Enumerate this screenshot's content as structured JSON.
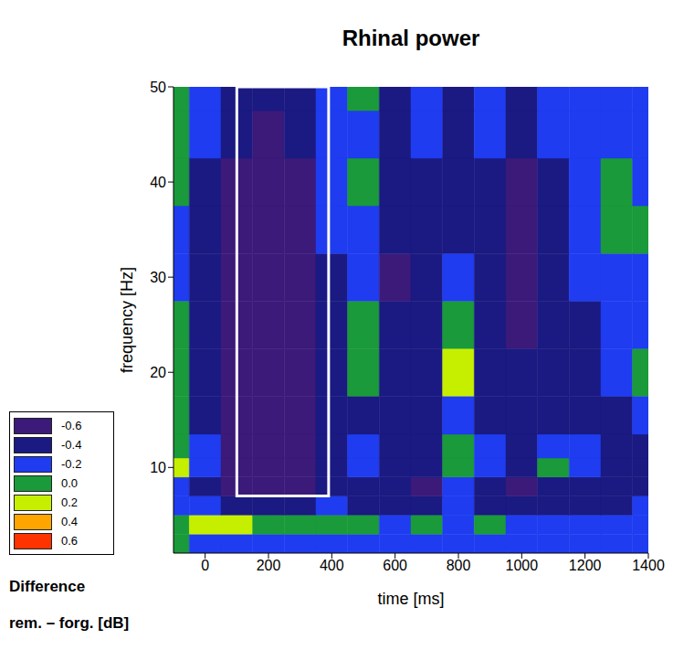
{
  "chart_data": {
    "type": "heatmap",
    "title": "Rhinal power",
    "x_label": "time [ms]",
    "y_label": "frequency [Hz]",
    "x": [
      -100,
      0,
      100,
      200,
      300,
      400,
      500,
      600,
      700,
      800,
      900,
      1000,
      1100,
      1200,
      1300,
      1400
    ],
    "y": [
      2,
      4,
      6,
      8,
      10,
      12,
      15,
      20,
      25,
      30,
      35,
      40,
      45,
      50
    ],
    "z": [
      [
        0.0,
        -0.2,
        -0.2,
        -0.2,
        -0.2,
        -0.2,
        -0.2,
        -0.2,
        -0.2,
        -0.2,
        -0.2,
        -0.2,
        -0.2,
        -0.2,
        -0.2,
        -0.2
      ],
      [
        0.0,
        0.2,
        0.2,
        0.0,
        0.0,
        0.0,
        0.0,
        -0.2,
        0.0,
        -0.2,
        0.0,
        -0.2,
        -0.2,
        -0.2,
        -0.2,
        -0.2
      ],
      [
        -0.2,
        -0.2,
        -0.4,
        -0.4,
        -0.4,
        -0.2,
        -0.4,
        -0.4,
        -0.4,
        -0.2,
        -0.4,
        -0.4,
        -0.4,
        -0.4,
        -0.4,
        -0.2
      ],
      [
        -0.2,
        -0.4,
        -0.6,
        -0.6,
        -0.6,
        -0.4,
        -0.4,
        -0.4,
        -0.6,
        -0.2,
        -0.4,
        -0.6,
        -0.4,
        -0.4,
        -0.4,
        -0.4
      ],
      [
        0.2,
        -0.2,
        -0.6,
        -0.6,
        -0.6,
        -0.4,
        -0.2,
        -0.4,
        -0.4,
        0.0,
        -0.2,
        -0.4,
        0.0,
        -0.2,
        -0.4,
        -0.4
      ],
      [
        0.0,
        -0.2,
        -0.6,
        -0.6,
        -0.6,
        -0.4,
        -0.2,
        -0.4,
        -0.4,
        0.0,
        -0.2,
        -0.4,
        -0.2,
        -0.2,
        -0.4,
        -0.4
      ],
      [
        0.0,
        -0.4,
        -0.6,
        -0.6,
        -0.6,
        -0.4,
        -0.4,
        -0.4,
        -0.4,
        -0.2,
        -0.4,
        -0.4,
        -0.4,
        -0.4,
        -0.4,
        -0.2
      ],
      [
        0.0,
        -0.4,
        -0.6,
        -0.6,
        -0.6,
        -0.4,
        0.0,
        -0.4,
        -0.4,
        0.2,
        -0.4,
        -0.4,
        -0.4,
        -0.4,
        -0.2,
        0.0
      ],
      [
        0.0,
        -0.4,
        -0.6,
        -0.6,
        -0.6,
        -0.4,
        0.0,
        -0.4,
        -0.4,
        0.0,
        -0.4,
        -0.6,
        -0.4,
        -0.4,
        -0.2,
        -0.2
      ],
      [
        -0.2,
        -0.4,
        -0.6,
        -0.6,
        -0.6,
        -0.4,
        -0.2,
        -0.6,
        -0.4,
        -0.2,
        -0.4,
        -0.6,
        -0.4,
        -0.2,
        -0.2,
        -0.2
      ],
      [
        -0.2,
        -0.4,
        -0.6,
        -0.6,
        -0.6,
        -0.2,
        -0.2,
        -0.4,
        -0.4,
        -0.4,
        -0.4,
        -0.6,
        -0.4,
        -0.2,
        0.0,
        0.0
      ],
      [
        0.0,
        -0.4,
        -0.6,
        -0.6,
        -0.6,
        -0.2,
        0.0,
        -0.4,
        -0.4,
        -0.4,
        -0.4,
        -0.6,
        -0.4,
        -0.2,
        0.0,
        -0.2
      ],
      [
        0.0,
        -0.2,
        -0.4,
        -0.6,
        -0.4,
        -0.2,
        -0.2,
        -0.4,
        -0.2,
        -0.4,
        -0.2,
        -0.4,
        -0.2,
        -0.2,
        -0.2,
        -0.2
      ],
      [
        0.0,
        -0.2,
        -0.4,
        -0.4,
        -0.4,
        -0.2,
        0.0,
        -0.4,
        -0.2,
        -0.4,
        -0.2,
        -0.4,
        -0.2,
        -0.2,
        -0.2,
        -0.2
      ]
    ],
    "xlim": [
      -100,
      1400
    ],
    "xticks": [
      0,
      200,
      400,
      600,
      800,
      1000,
      1200,
      1400
    ],
    "ylim": [
      1,
      50
    ],
    "yticks": [
      10,
      20,
      30,
      40,
      50
    ],
    "colorbar": {
      "title": [
        "Difference",
        "rem. – forg. [dB]"
      ],
      "ticks": [
        -0.6,
        -0.4,
        -0.2,
        {
          "value": 0,
          "label": "0.0"
        },
        0.2,
        0.4,
        0.6
      ],
      "colors": [
        "#3b1a7a",
        "#1a1a82",
        "#1f3cf0",
        "#1a9a3a",
        "#c6ef00",
        "#ffa500",
        "#ff3300"
      ]
    },
    "highlight": {
      "x": [
        100,
        390
      ],
      "y": [
        7,
        50
      ]
    }
  }
}
